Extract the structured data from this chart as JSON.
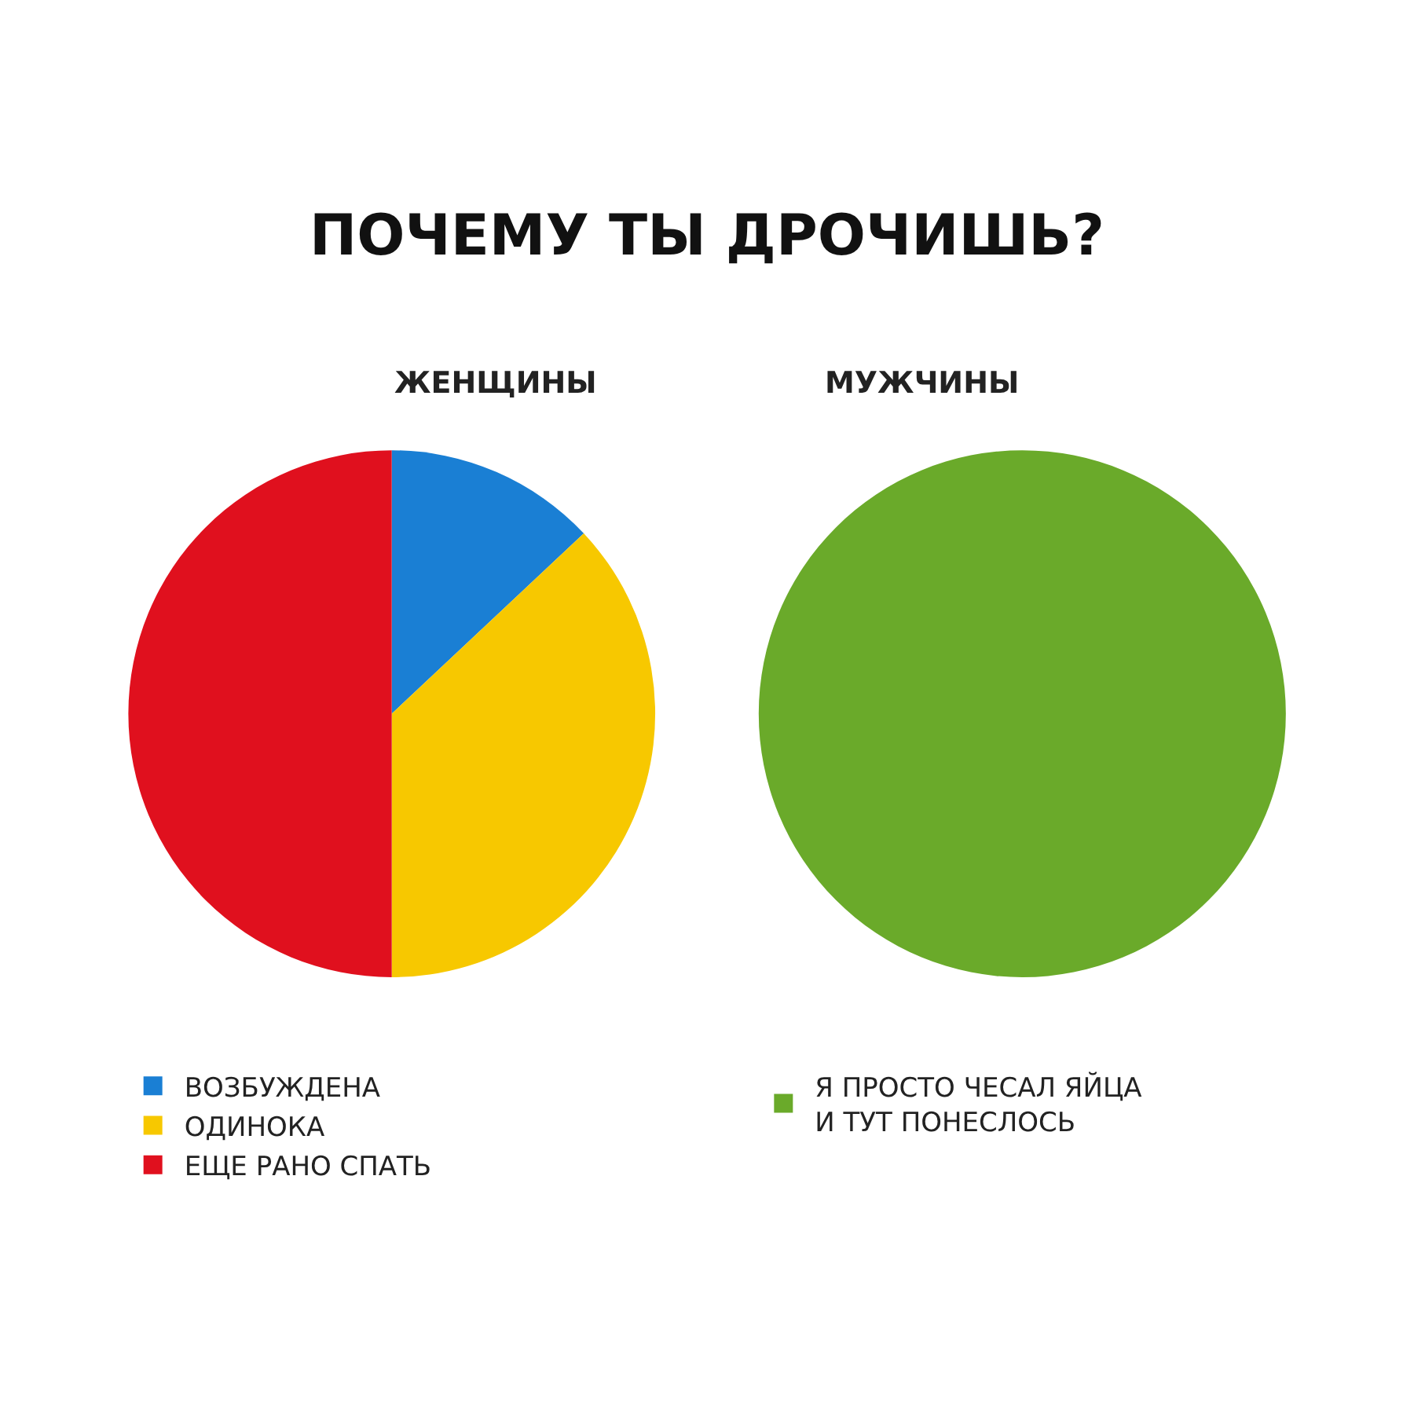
{
  "chart_data": [
    {
      "type": "pie",
      "title": "ПОЧЕМУ ТЫ ДРОЧИШЬ?",
      "subtitle": "ЖЕНЩИНЫ",
      "categories": [
        "ВОЗБУЖДЕНА",
        "ОДИНОКА",
        "ЕЩЕ РАНО СПАТЬ"
      ],
      "values": [
        13,
        37,
        50
      ],
      "colors": [
        "#1a7fd4",
        "#f7c800",
        "#e0101e"
      ],
      "legend": "bottom"
    },
    {
      "type": "pie",
      "subtitle": "МУЖЧИНЫ",
      "categories": [
        "Я ПРОСТО ЧЕСАЛ ЯЙЦА И ТУТ ПОНЕСЛОСЬ"
      ],
      "values": [
        100
      ],
      "colors": [
        "#6aaa2a"
      ],
      "legend": "bottom"
    }
  ]
}
